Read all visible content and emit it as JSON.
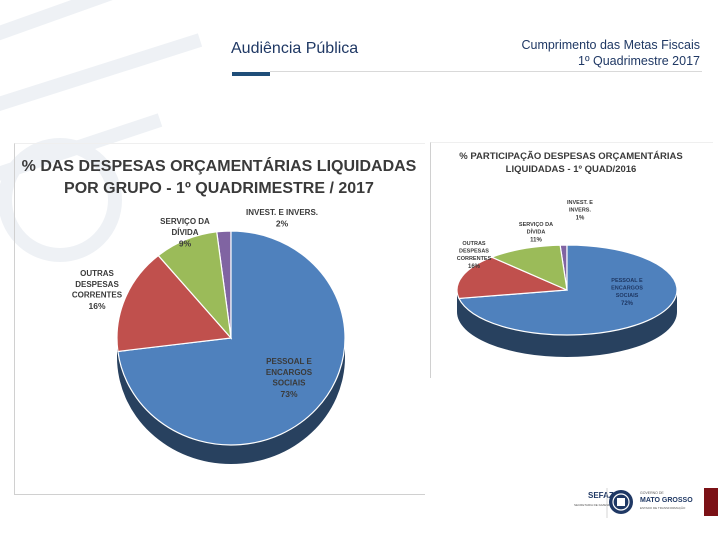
{
  "header": {
    "left_title": "Audiência Pública",
    "right_line1": "Cumprimento das Metas Fiscais",
    "right_line2": "1º Quadrimestre 2017"
  },
  "colors": {
    "accent_bar": "#1f4e79",
    "pessoal": "#4f81bd",
    "outras": "#c0504d",
    "servico": "#9bbb59",
    "invest": "#8064a2"
  },
  "chart_data": [
    {
      "type": "pie",
      "title_line1": "% DAS DESPESAS ORÇAMENTÁRIAS LIQUIDADAS",
      "title_line2": "POR GRUPO - 1º QUADRIMESTRE  / 2017",
      "slices": [
        {
          "label_lines": [
            "INVEST. E INVERS."
          ],
          "value": 2,
          "pct": "2%"
        },
        {
          "label_lines": [
            "PESSOAL E",
            "ENCARGOS",
            "SOCIAIS"
          ],
          "value": 73,
          "pct": "73%"
        },
        {
          "label_lines": [
            "OUTRAS",
            "DESPESAS",
            "CORRENTES"
          ],
          "value": 16,
          "pct": "16%"
        },
        {
          "label_lines": [
            "SERVIÇO DA",
            "DÍVIDA"
          ],
          "value": 9,
          "pct": "9%"
        }
      ]
    },
    {
      "type": "pie",
      "title_line1": "% PARTICIPAÇÃO DESPESAS ORÇAMENTÁRIAS",
      "title_line2": "LIQUIDADAS - 1º QUAD/2016",
      "slices": [
        {
          "label_lines": [
            "INVEST. E",
            "INVERS."
          ],
          "value": 1,
          "pct": "1%"
        },
        {
          "label_lines": [
            "PESSOAL E",
            "ENCARGOS",
            "SOCIAIS"
          ],
          "value": 72,
          "pct": "72%"
        },
        {
          "label_lines": [
            "OUTRAS",
            "DESPESAS",
            "CORRENTES"
          ],
          "value": 16,
          "pct": "16%"
        },
        {
          "label_lines": [
            "SERVIÇO DA",
            "DÍVIDA"
          ],
          "value": 11,
          "pct": "11%"
        }
      ]
    }
  ],
  "footer": {
    "sefaz_label": "SEFAZ",
    "sefaz_sub": "SECRETARIA DE FAZENDA",
    "gov_label": "MATO GROSSO",
    "gov_sub": "GOVERNO DE",
    "gov_tag": "ESTADO DE TRANSFORMAÇÃO"
  }
}
